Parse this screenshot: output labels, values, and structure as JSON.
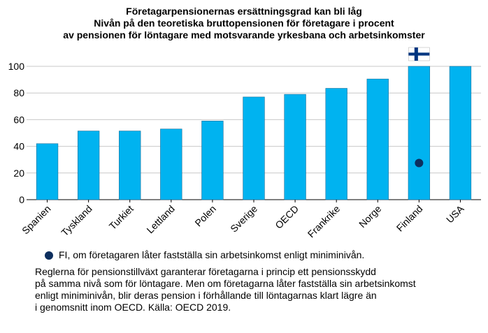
{
  "title": {
    "line1": "Företagarpensionernas ersättningsgrad kan bli låg",
    "line2": "Nivån på den teoretiska bruttopensionen för företagare i procent",
    "line3": "av pensionen för löntagare med motsvarande yrkesbana och arbetsinkomster"
  },
  "legend": {
    "marker_label": "FI, om företagaren låter fastställa sin arbetsinkomst enligt miniminivån."
  },
  "note": {
    "line1": "Reglerna för pensionstillväxt garanterar företagarna i princip ett pensionsskydd",
    "line2": "på samma nivå som för löntagare. Men om företagarna låter fastställa sin arbetsinkomst",
    "line3": "enligt miniminivån, blir deras pension i förhållande till löntagarnas klart lägre än",
    "line4": "i genomsnitt inom OECD. Källa: OECD 2019."
  },
  "chart_data": {
    "type": "bar",
    "categories": [
      "Spanien",
      "Tyskland",
      "Turkiet",
      "Lettland",
      "Polen",
      "Sverige",
      "OECD",
      "Frankrike",
      "Norge",
      "Finland",
      "USA"
    ],
    "values": [
      42,
      51.5,
      51.5,
      53,
      59,
      77,
      79,
      83.5,
      90.5,
      100,
      100
    ],
    "markers": [
      {
        "category": "Finland",
        "value": 27.5,
        "label": "FI, om företagaren låter fastställa sin arbetsinkomst enligt miniminivån."
      }
    ],
    "flag": {
      "category": "Finland",
      "icon": "finland-flag-icon"
    },
    "ylim": [
      0,
      100
    ],
    "yticks": [
      0,
      20,
      40,
      60,
      80,
      100
    ],
    "grid": true,
    "xlabel": "",
    "ylabel": "",
    "colors": {
      "bar": "#00b3f0",
      "bar_edge": "#1a6f99",
      "marker": "#0d2f5e",
      "grid": "#c8c8c8",
      "flag_blue": "#003580"
    }
  }
}
